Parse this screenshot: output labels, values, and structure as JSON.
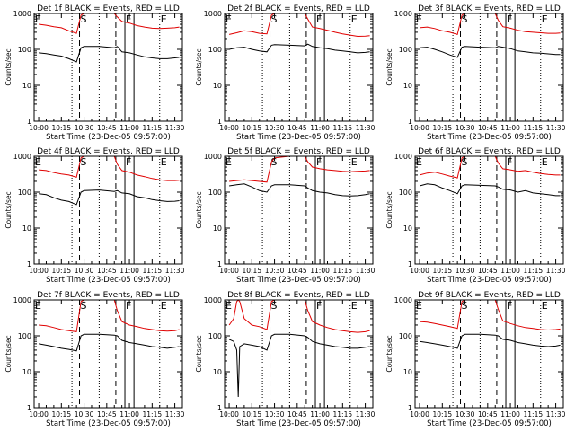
{
  "figure": {
    "ylabel": "Counts/sec",
    "xlabel": "Start Time (23-Dec-05 09:57:00)",
    "x_ticks": [
      "10:00",
      "10:15",
      "10:30",
      "10:45",
      "11:00",
      "11:15",
      "11:30"
    ],
    "y_ticks": [
      "1",
      "10",
      "100",
      "1000"
    ],
    "colors": {
      "events": "#000000",
      "lld": "#e00000",
      "axes": "#000000"
    }
  },
  "chart_data": [
    {
      "type": "line",
      "title": "Det 1f BLACK = Events, RED = LLD",
      "xlim": [
        "09:57",
        "11:35"
      ],
      "ylim": [
        1,
        1000
      ],
      "yscale": "log",
      "grid": false,
      "marker_labels": [
        "E",
        "S",
        "F",
        "E"
      ],
      "markers": {
        "dotted": [
          "10:22",
          "10:40",
          "11:20"
        ],
        "dashed": [
          "10:27",
          "10:51"
        ],
        "solid": [
          "10:57",
          "11:03"
        ]
      },
      "x": [
        "10:00",
        "10:05",
        "10:10",
        "10:15",
        "10:20",
        "10:25",
        "10:28",
        "10:30",
        "10:40",
        "10:50",
        "10:52",
        "10:55",
        "11:00",
        "11:05",
        "11:10",
        "11:15",
        "11:20",
        "11:25",
        "11:30",
        "11:33"
      ],
      "series": [
        {
          "name": "BLACK = Events",
          "values": [
            80,
            76,
            70,
            65,
            55,
            45,
            110,
            120,
            120,
            110,
            120,
            85,
            80,
            70,
            62,
            58,
            55,
            55,
            58,
            60
          ]
        },
        {
          "name": "RED = LLD",
          "values": [
            500,
            470,
            430,
            400,
            330,
            280,
            900,
            1000,
            1000,
            1000,
            800,
            600,
            540,
            460,
            420,
            390,
            380,
            390,
            400,
            420
          ]
        }
      ]
    },
    {
      "type": "line",
      "title": "Det 2f BLACK = Events, RED = LLD",
      "xlim": [
        "09:57",
        "11:35"
      ],
      "ylim": [
        1,
        1000
      ],
      "yscale": "log",
      "grid": false,
      "marker_labels": [
        "E",
        "S",
        "F",
        "E"
      ],
      "markers": {
        "dotted": [
          "10:22",
          "10:40",
          "11:20"
        ],
        "dashed": [
          "10:27",
          "10:51"
        ],
        "solid": [
          "10:57",
          "11:03"
        ]
      },
      "x": [
        "10:00",
        "10:05",
        "10:10",
        "10:15",
        "10:20",
        "10:25",
        "10:28",
        "10:30",
        "10:40",
        "10:50",
        "10:52",
        "10:55",
        "11:00",
        "11:05",
        "11:10",
        "11:15",
        "11:20",
        "11:25",
        "11:30",
        "11:33"
      ],
      "series": [
        {
          "name": "BLACK = Events",
          "values": [
            100,
            110,
            115,
            100,
            90,
            85,
            130,
            135,
            130,
            125,
            140,
            120,
            110,
            105,
            95,
            90,
            85,
            80,
            82,
            85
          ]
        },
        {
          "name": "RED = LLD",
          "values": [
            260,
            290,
            330,
            310,
            280,
            270,
            900,
            1000,
            1000,
            1000,
            700,
            420,
            380,
            340,
            300,
            270,
            250,
            230,
            235,
            240
          ]
        }
      ]
    },
    {
      "type": "line",
      "title": "Det 3f BLACK = Events, RED = LLD",
      "xlim": [
        "09:57",
        "11:35"
      ],
      "ylim": [
        1,
        1000
      ],
      "yscale": "log",
      "grid": false,
      "marker_labels": [
        "E",
        "S",
        "F",
        "E"
      ],
      "markers": {
        "dotted": [
          "10:22",
          "10:40",
          "11:20"
        ],
        "dashed": [
          "10:27",
          "10:51"
        ],
        "solid": [
          "10:57",
          "11:03"
        ]
      },
      "x": [
        "10:00",
        "10:05",
        "10:10",
        "10:15",
        "10:20",
        "10:25",
        "10:28",
        "10:30",
        "10:40",
        "10:50",
        "10:52",
        "10:55",
        "11:00",
        "11:05",
        "11:10",
        "11:15",
        "11:20",
        "11:25",
        "11:30",
        "11:33"
      ],
      "series": [
        {
          "name": "BLACK = Events",
          "values": [
            110,
            115,
            100,
            85,
            70,
            60,
            115,
            120,
            115,
            110,
            120,
            115,
            105,
            90,
            85,
            80,
            78,
            75,
            72,
            72
          ]
        },
        {
          "name": "RED = LLD",
          "values": [
            400,
            420,
            380,
            330,
            300,
            260,
            900,
            1000,
            1000,
            1000,
            650,
            430,
            390,
            340,
            310,
            300,
            290,
            280,
            280,
            285
          ]
        }
      ]
    },
    {
      "type": "line",
      "title": "Det 4f BLACK = Events, RED = LLD",
      "xlim": [
        "09:57",
        "11:35"
      ],
      "ylim": [
        1,
        1000
      ],
      "yscale": "log",
      "grid": false,
      "marker_labels": [
        "E",
        "S",
        "F",
        "E"
      ],
      "markers": {
        "dotted": [
          "10:22",
          "10:40",
          "11:20"
        ],
        "dashed": [
          "10:27",
          "10:51"
        ],
        "solid": [
          "10:57",
          "11:03"
        ]
      },
      "x": [
        "10:00",
        "10:05",
        "10:10",
        "10:15",
        "10:20",
        "10:25",
        "10:28",
        "10:30",
        "10:40",
        "10:50",
        "10:52",
        "10:55",
        "11:00",
        "11:05",
        "11:10",
        "11:15",
        "11:20",
        "11:25",
        "11:30",
        "11:33"
      ],
      "series": [
        {
          "name": "BLACK = Events",
          "values": [
            90,
            85,
            70,
            60,
            55,
            45,
            100,
            110,
            115,
            105,
            110,
            95,
            90,
            75,
            70,
            62,
            58,
            55,
            56,
            58
          ]
        },
        {
          "name": "RED = LLD",
          "values": [
            420,
            400,
            350,
            320,
            300,
            260,
            900,
            1000,
            1000,
            1000,
            600,
            400,
            360,
            300,
            270,
            240,
            220,
            210,
            210,
            215
          ]
        }
      ]
    },
    {
      "type": "line",
      "title": "Det 5f BLACK = Events, RED = LLD",
      "xlim": [
        "09:57",
        "11:35"
      ],
      "ylim": [
        1,
        1000
      ],
      "yscale": "log",
      "grid": false,
      "marker_labels": [
        "E",
        "S",
        "F",
        "E"
      ],
      "markers": {
        "dotted": [
          "10:22",
          "10:40",
          "11:20"
        ],
        "dashed": [
          "10:27",
          "10:51"
        ],
        "solid": [
          "10:57",
          "11:03"
        ]
      },
      "x": [
        "10:00",
        "10:05",
        "10:10",
        "10:15",
        "10:20",
        "10:25",
        "10:28",
        "10:30",
        "10:40",
        "10:50",
        "10:52",
        "10:55",
        "11:00",
        "11:05",
        "11:10",
        "11:15",
        "11:20",
        "11:25",
        "11:30",
        "11:33"
      ],
      "series": [
        {
          "name": "BLACK = Events",
          "values": [
            150,
            160,
            170,
            140,
            110,
            100,
            150,
            160,
            160,
            150,
            130,
            110,
            100,
            95,
            85,
            80,
            78,
            80,
            85,
            90
          ]
        },
        {
          "name": "RED = LLD",
          "values": [
            200,
            210,
            220,
            210,
            200,
            190,
            700,
            900,
            1000,
            1000,
            700,
            500,
            450,
            420,
            400,
            380,
            370,
            380,
            390,
            400
          ]
        }
      ]
    },
    {
      "type": "line",
      "title": "Det 6f BLACK = Events, RED = LLD",
      "xlim": [
        "09:57",
        "11:35"
      ],
      "ylim": [
        1,
        1000
      ],
      "yscale": "log",
      "grid": false,
      "marker_labels": [
        "E",
        "S",
        "F",
        "E"
      ],
      "markers": {
        "dotted": [
          "10:22",
          "10:40",
          "11:20"
        ],
        "dashed": [
          "10:27",
          "10:51"
        ],
        "solid": [
          "10:57",
          "11:03"
        ]
      },
      "x": [
        "10:00",
        "10:05",
        "10:10",
        "10:15",
        "10:20",
        "10:25",
        "10:28",
        "10:30",
        "10:40",
        "10:50",
        "10:52",
        "10:55",
        "11:00",
        "11:05",
        "11:10",
        "11:15",
        "11:20",
        "11:25",
        "11:30",
        "11:33"
      ],
      "series": [
        {
          "name": "BLACK = Events",
          "values": [
            150,
            170,
            160,
            130,
            110,
            90,
            150,
            160,
            155,
            150,
            140,
            120,
            115,
            100,
            110,
            95,
            90,
            85,
            80,
            80
          ]
        },
        {
          "name": "RED = LLD",
          "values": [
            300,
            340,
            360,
            320,
            280,
            250,
            900,
            1000,
            1000,
            1000,
            650,
            450,
            420,
            380,
            400,
            360,
            330,
            310,
            300,
            300
          ]
        }
      ]
    },
    {
      "type": "line",
      "title": "Det 7f BLACK = Events, RED = LLD",
      "xlim": [
        "09:57",
        "11:35"
      ],
      "ylim": [
        1,
        1000
      ],
      "yscale": "log",
      "grid": false,
      "marker_labels": [
        "E",
        "S",
        "F",
        "E"
      ],
      "markers": {
        "dotted": [
          "10:22",
          "10:40",
          "11:20"
        ],
        "dashed": [
          "10:27",
          "10:51"
        ],
        "solid": [
          "10:57",
          "11:03"
        ]
      },
      "x": [
        "10:00",
        "10:05",
        "10:10",
        "10:15",
        "10:20",
        "10:25",
        "10:28",
        "10:30",
        "10:40",
        "10:50",
        "10:52",
        "10:55",
        "11:00",
        "11:05",
        "11:10",
        "11:15",
        "11:20",
        "11:25",
        "11:30",
        "11:33"
      ],
      "series": [
        {
          "name": "BLACK = Events",
          "values": [
            60,
            55,
            50,
            45,
            42,
            38,
            100,
            110,
            110,
            105,
            100,
            75,
            65,
            60,
            55,
            50,
            48,
            45,
            48,
            50
          ]
        },
        {
          "name": "RED = LLD",
          "values": [
            200,
            190,
            170,
            150,
            140,
            130,
            900,
            1000,
            1000,
            1000,
            500,
            250,
            200,
            180,
            160,
            150,
            140,
            135,
            140,
            150
          ]
        }
      ]
    },
    {
      "type": "line",
      "title": "Det 8f BLACK = Events, RED = LLD",
      "xlim": [
        "09:57",
        "11:35"
      ],
      "ylim": [
        1,
        1000
      ],
      "yscale": "log",
      "grid": false,
      "marker_labels": [
        "E",
        "S",
        "F",
        "E"
      ],
      "markers": {
        "dotted": [
          "10:22",
          "10:40",
          "11:20"
        ],
        "dashed": [
          "10:27",
          "10:51"
        ],
        "solid": [
          "10:57",
          "11:03"
        ]
      },
      "x": [
        "10:00",
        "10:03",
        "10:05",
        "10:06",
        "10:07",
        "10:10",
        "10:15",
        "10:20",
        "10:25",
        "10:28",
        "10:30",
        "10:40",
        "10:50",
        "10:52",
        "10:55",
        "11:00",
        "11:05",
        "11:10",
        "11:15",
        "11:20",
        "11:25",
        "11:30",
        "11:33"
      ],
      "series": [
        {
          "name": "BLACK = Events",
          "values": [
            80,
            70,
            40,
            2,
            50,
            60,
            55,
            50,
            40,
            100,
            110,
            110,
            100,
            90,
            70,
            60,
            55,
            50,
            48,
            45,
            45,
            48,
            50
          ]
        },
        {
          "name": "RED = LLD",
          "values": [
            200,
            300,
            900,
            1000,
            900,
            300,
            200,
            180,
            150,
            900,
            1000,
            1000,
            1000,
            500,
            250,
            200,
            170,
            150,
            140,
            130,
            125,
            130,
            140
          ]
        }
      ]
    },
    {
      "type": "line",
      "title": "Det 9f BLACK = Events, RED = LLD",
      "xlim": [
        "09:57",
        "11:35"
      ],
      "ylim": [
        1,
        1000
      ],
      "yscale": "log",
      "grid": false,
      "marker_labels": [
        "E",
        "S",
        "F",
        "E"
      ],
      "markers": {
        "dotted": [
          "10:22",
          "10:40",
          "11:20"
        ],
        "dashed": [
          "10:27",
          "10:51"
        ],
        "solid": [
          "10:57",
          "11:03"
        ]
      },
      "x": [
        "10:00",
        "10:05",
        "10:10",
        "10:15",
        "10:20",
        "10:25",
        "10:28",
        "10:30",
        "10:40",
        "10:50",
        "10:52",
        "10:55",
        "11:00",
        "11:05",
        "11:10",
        "11:15",
        "11:20",
        "11:25",
        "11:30",
        "11:33"
      ],
      "series": [
        {
          "name": "BLACK = Events",
          "values": [
            70,
            65,
            60,
            55,
            50,
            45,
            100,
            110,
            110,
            105,
            100,
            80,
            75,
            65,
            60,
            55,
            52,
            50,
            52,
            55
          ]
        },
        {
          "name": "RED = LLD",
          "values": [
            250,
            240,
            220,
            200,
            180,
            160,
            900,
            1000,
            1000,
            1000,
            550,
            260,
            220,
            190,
            170,
            160,
            150,
            145,
            150,
            155
          ]
        }
      ]
    }
  ]
}
